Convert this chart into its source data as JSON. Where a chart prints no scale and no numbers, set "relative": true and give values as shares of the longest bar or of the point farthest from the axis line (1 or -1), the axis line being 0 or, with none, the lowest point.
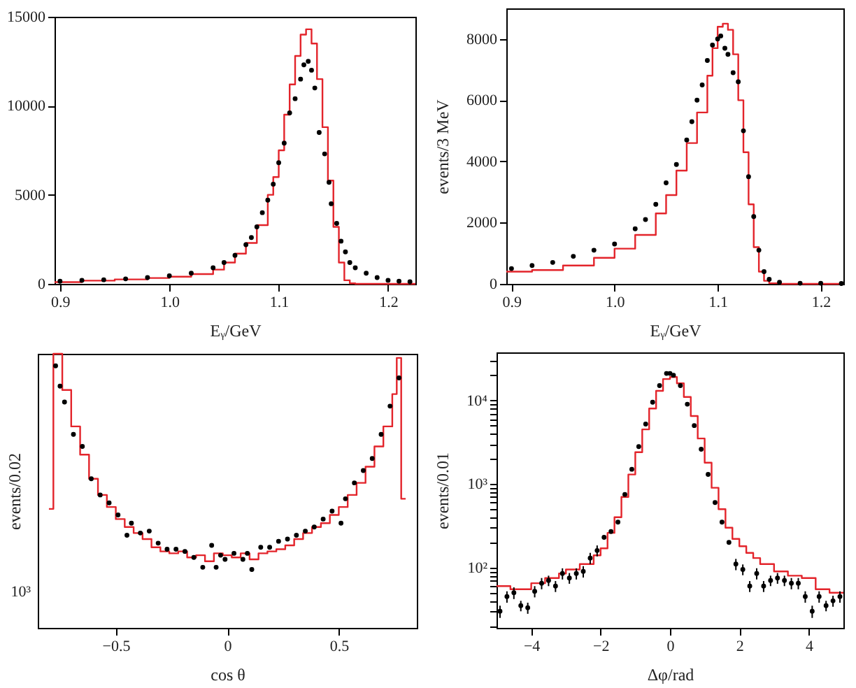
{
  "chart_data": [
    {
      "type": "step",
      "xlabel": "Eᵧ/GeV",
      "xlim": [
        0.895,
        1.225
      ],
      "ylim": [
        0,
        15000
      ],
      "xticks": [
        {
          "value": 0.9,
          "label": "0.9"
        },
        {
          "value": 1,
          "label": "1.0"
        },
        {
          "value": 1.1,
          "label": "1.1"
        },
        {
          "value": 1.2,
          "label": "1.2"
        }
      ],
      "yticks": [
        0,
        5000,
        10000,
        15000
      ],
      "series": [
        {
          "color": "#e3242b",
          "x": [
            0.895,
            0.92,
            0.95,
            0.98,
            1.0,
            1.02,
            1.04,
            1.05,
            1.06,
            1.07,
            1.08,
            1.09,
            1.095,
            1.1,
            1.105,
            1.11,
            1.115,
            1.12,
            1.125,
            1.13,
            1.135,
            1.14,
            1.145,
            1.15,
            1.155,
            1.16,
            1.165,
            1.17,
            1.225
          ],
          "values": [
            100,
            180,
            250,
            330,
            400,
            550,
            800,
            1200,
            1700,
            2300,
            3300,
            5000,
            6000,
            7500,
            9500,
            11200,
            12800,
            14000,
            14300,
            13500,
            11500,
            8800,
            5800,
            3200,
            1200,
            200,
            30,
            0,
            0
          ]
        },
        {
          "type": "scatter",
          "marker": "circle",
          "color": "#000000",
          "x": [
            0.9,
            0.92,
            0.94,
            0.96,
            0.98,
            1.0,
            1.02,
            1.04,
            1.05,
            1.06,
            1.07,
            1.075,
            1.08,
            1.085,
            1.09,
            1.095,
            1.1,
            1.105,
            1.11,
            1.115,
            1.12,
            1.123,
            1.127,
            1.13,
            1.133,
            1.137,
            1.142,
            1.146,
            1.148,
            1.153,
            1.157,
            1.161,
            1.165,
            1.17,
            1.18,
            1.19,
            1.2,
            1.21,
            1.22
          ],
          "values": [
            150,
            200,
            230,
            280,
            350,
            450,
            600,
            900,
            1200,
            1600,
            2200,
            2600,
            3200,
            4000,
            4700,
            5600,
            6800,
            7900,
            9600,
            10400,
            11500,
            12300,
            12500,
            12000,
            11000,
            8500,
            7300,
            5700,
            4500,
            3400,
            2400,
            1800,
            1200,
            900,
            600,
            350,
            200,
            150,
            120
          ]
        }
      ]
    },
    {
      "type": "step",
      "xlabel": "Eᵧ/GeV",
      "ylabel": "events/3 MeV",
      "xlim": [
        0.895,
        1.222
      ],
      "ylim": [
        0,
        9000
      ],
      "xticks": [
        {
          "value": 0.9,
          "label": "0.9"
        },
        {
          "value": 1,
          "label": "1.0"
        },
        {
          "value": 1.1,
          "label": "1.1"
        },
        {
          "value": 1.2,
          "label": "1.2"
        }
      ],
      "yticks": [
        0,
        2000,
        4000,
        6000,
        8000
      ],
      "series": [
        {
          "color": "#e3242b",
          "x": [
            0.895,
            0.92,
            0.95,
            0.98,
            1.0,
            1.02,
            1.04,
            1.05,
            1.06,
            1.07,
            1.08,
            1.09,
            1.095,
            1.1,
            1.105,
            1.11,
            1.115,
            1.12,
            1.125,
            1.13,
            1.135,
            1.14,
            1.145,
            1.15,
            1.16,
            1.222
          ],
          "values": [
            400,
            450,
            600,
            850,
            1150,
            1600,
            2300,
            2900,
            3700,
            4600,
            5600,
            6800,
            7700,
            8400,
            8500,
            8300,
            7500,
            6000,
            4300,
            2600,
            1200,
            400,
            100,
            20,
            0,
            0
          ]
        },
        {
          "type": "scatter",
          "marker": "circle",
          "color": "#000000",
          "x": [
            0.9,
            0.92,
            0.94,
            0.96,
            0.98,
            1.0,
            1.02,
            1.03,
            1.04,
            1.05,
            1.06,
            1.07,
            1.075,
            1.08,
            1.085,
            1.09,
            1.095,
            1.1,
            1.103,
            1.107,
            1.11,
            1.115,
            1.12,
            1.125,
            1.13,
            1.135,
            1.14,
            1.145,
            1.15,
            1.16,
            1.18,
            1.2,
            1.22
          ],
          "values": [
            500,
            600,
            700,
            900,
            1100,
            1300,
            1800,
            2100,
            2600,
            3300,
            3900,
            4700,
            5300,
            6000,
            6500,
            7300,
            7800,
            8000,
            8100,
            7700,
            7500,
            6900,
            6600,
            5000,
            3500,
            2200,
            1100,
            400,
            150,
            50,
            20,
            20,
            10
          ]
        }
      ]
    },
    {
      "type": "step",
      "xlabel": "cos θ",
      "ylabel": "events/0.02",
      "relative": true,
      "annotations": [
        "10³"
      ],
      "xlim": [
        -0.85,
        0.85
      ],
      "xticks": [
        {
          "value": -0.5,
          "label": "−0.5"
        },
        0,
        0.5
      ],
      "series": [
        {
          "color": "#e3242b",
          "x": [
            -0.8,
            -0.78,
            -0.74,
            -0.7,
            -0.66,
            -0.62,
            -0.58,
            -0.54,
            -0.5,
            -0.46,
            -0.42,
            -0.38,
            -0.34,
            -0.3,
            -0.26,
            -0.22,
            -0.18,
            -0.14,
            -0.1,
            -0.06,
            -0.02,
            0.02,
            0.06,
            0.1,
            0.14,
            0.18,
            0.22,
            0.26,
            0.3,
            0.34,
            0.38,
            0.42,
            0.46,
            0.5,
            0.54,
            0.58,
            0.62,
            0.66,
            0.7,
            0.74,
            0.76,
            0.78,
            0.8
          ],
          "values": [
            0.434,
            1,
            0.868,
            0.735,
            0.632,
            0.544,
            0.485,
            0.441,
            0.397,
            0.368,
            0.346,
            0.324,
            0.294,
            0.279,
            0.272,
            0.279,
            0.257,
            0.265,
            0.243,
            0.272,
            0.265,
            0.257,
            0.272,
            0.25,
            0.272,
            0.279,
            0.287,
            0.301,
            0.324,
            0.346,
            0.368,
            0.382,
            0.412,
            0.441,
            0.485,
            0.529,
            0.588,
            0.662,
            0.735,
            0.853,
            0.985,
            0.471,
            0.471
          ]
        },
        {
          "type": "scatter",
          "marker": "circle",
          "color": "#000000",
          "x": [
            -0.77,
            -0.75,
            -0.73,
            -0.69,
            -0.65,
            -0.61,
            -0.57,
            -0.53,
            -0.49,
            -0.45,
            -0.43,
            -0.39,
            -0.35,
            -0.31,
            -0.27,
            -0.23,
            -0.19,
            -0.15,
            -0.11,
            -0.07,
            -0.05,
            -0.03,
            -0.01,
            0.03,
            0.07,
            0.09,
            0.11,
            0.15,
            0.19,
            0.23,
            0.27,
            0.31,
            0.35,
            0.39,
            0.43,
            0.47,
            0.51,
            0.53,
            0.57,
            0.61,
            0.65,
            0.69,
            0.73,
            0.77
          ],
          "values": [
            0.956,
            0.882,
            0.824,
            0.706,
            0.662,
            0.544,
            0.485,
            0.456,
            0.412,
            0.338,
            0.382,
            0.346,
            0.353,
            0.309,
            0.287,
            0.287,
            0.279,
            0.257,
            0.221,
            0.301,
            0.221,
            0.265,
            0.25,
            0.272,
            0.25,
            0.272,
            0.213,
            0.294,
            0.294,
            0.316,
            0.324,
            0.338,
            0.353,
            0.368,
            0.397,
            0.426,
            0.382,
            0.471,
            0.529,
            0.574,
            0.618,
            0.706,
            0.809,
            0.912
          ]
        }
      ]
    },
    {
      "type": "step",
      "xlabel": "Δφ/rad",
      "ylabel": "events/0.01",
      "log": "y",
      "xlim": [
        -5,
        5
      ],
      "ylim": [
        19,
        37500
      ],
      "xticks": [
        {
          "value": -4,
          "label": "−4"
        },
        {
          "value": -2,
          "label": "−2"
        },
        0,
        2,
        4
      ],
      "yticks": [
        {
          "value": 20,
          "label": null
        },
        {
          "value": 30,
          "label": null
        },
        {
          "value": 40,
          "label": null
        },
        {
          "value": 50,
          "label": null
        },
        {
          "value": 60,
          "label": null
        },
        {
          "value": 70,
          "label": null
        },
        {
          "value": 80,
          "label": null
        },
        {
          "value": 90,
          "label": null
        },
        {
          "value": 100,
          "label": "10²"
        },
        {
          "value": 200,
          "label": null
        },
        {
          "value": 300,
          "label": null
        },
        {
          "value": 400,
          "label": null
        },
        {
          "value": 500,
          "label": null
        },
        {
          "value": 600,
          "label": null
        },
        {
          "value": 700,
          "label": null
        },
        {
          "value": 800,
          "label": null
        },
        {
          "value": 900,
          "label": null
        },
        {
          "value": 1000,
          "label": "10³"
        },
        {
          "value": 2000,
          "label": null
        },
        {
          "value": 3000,
          "label": null
        },
        {
          "value": 4000,
          "label": null
        },
        {
          "value": 5000,
          "label": null
        },
        {
          "value": 6000,
          "label": null
        },
        {
          "value": 7000,
          "label": null
        },
        {
          "value": 8000,
          "label": null
        },
        {
          "value": 9000,
          "label": null
        },
        {
          "value": 10000,
          "label": "10⁴"
        },
        {
          "value": 20000,
          "label": null
        },
        {
          "value": 30000,
          "label": null
        }
      ],
      "series": [
        {
          "color": "#e3242b",
          "x": [
            -5,
            -4.6,
            -4.2,
            -4,
            -3.6,
            -3.2,
            -3,
            -2.6,
            -2.2,
            -2,
            -1.8,
            -1.6,
            -1.4,
            -1.2,
            -1,
            -0.8,
            -0.6,
            -0.4,
            -0.2,
            0,
            0.2,
            0.4,
            0.6,
            0.8,
            1,
            1.2,
            1.4,
            1.6,
            1.8,
            2,
            2.2,
            2.4,
            2.6,
            3,
            3.4,
            3.8,
            4.2,
            4.6,
            5
          ],
          "values": [
            60,
            55,
            55,
            65,
            75,
            85,
            95,
            110,
            140,
            170,
            260,
            400,
            700,
            1300,
            2400,
            4500,
            8000,
            13000,
            18000,
            19000,
            16000,
            11000,
            6500,
            3500,
            1800,
            900,
            500,
            300,
            220,
            180,
            150,
            130,
            110,
            90,
            80,
            75,
            55,
            50,
            50
          ]
        },
        {
          "type": "scatter",
          "marker": "circle",
          "color": "#000000",
          "x": [
            -4.9,
            -4.7,
            -4.5,
            -4.3,
            -4.1,
            -3.9,
            -3.7,
            -3.5,
            -3.3,
            -3.1,
            -2.9,
            -2.7,
            -2.5,
            -2.3,
            -2.1,
            -1.9,
            -1.7,
            -1.5,
            -1.3,
            -1.1,
            -0.9,
            -0.7,
            -0.5,
            -0.3,
            -0.1,
            0,
            0.1,
            0.3,
            0.5,
            0.7,
            0.9,
            1.1,
            1.3,
            1.5,
            1.7,
            1.9,
            2.1,
            2.3,
            2.5,
            2.7,
            2.9,
            3.1,
            3.3,
            3.5,
            3.7,
            3.9,
            4.1,
            4.3,
            4.5,
            4.7,
            4.9
          ],
          "values": [
            30,
            45,
            50,
            35,
            33,
            52,
            65,
            70,
            60,
            85,
            75,
            85,
            90,
            130,
            160,
            230,
            270,
            350,
            750,
            1500,
            2800,
            5200,
            9500,
            15000,
            21000,
            21000,
            20000,
            15000,
            9000,
            5000,
            2600,
            1300,
            600,
            350,
            200,
            110,
            95,
            60,
            85,
            60,
            70,
            75,
            70,
            65,
            65,
            45,
            30,
            45,
            35,
            40,
            45
          ],
          "errors": [
            5,
            7,
            8,
            5,
            5,
            8,
            10,
            10,
            9,
            13,
            11,
            13,
            14,
            20,
            24,
            null,
            null,
            null,
            null,
            null,
            null,
            null,
            null,
            null,
            null,
            null,
            null,
            null,
            null,
            null,
            null,
            null,
            null,
            null,
            null,
            17,
            14,
            9,
            13,
            9,
            10,
            11,
            10,
            10,
            10,
            7,
            5,
            7,
            5,
            6,
            7
          ]
        }
      ]
    }
  ]
}
